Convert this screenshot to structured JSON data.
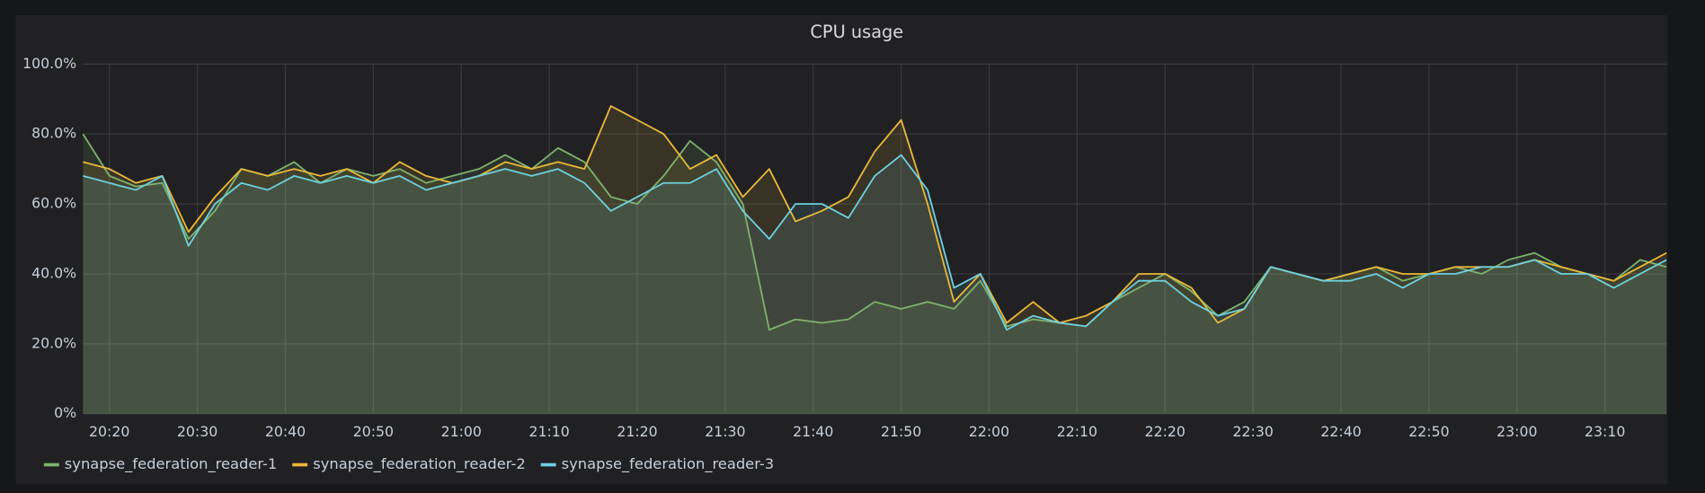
{
  "chart_data": {
    "type": "line",
    "title": "CPU usage",
    "x": [
      "20:17",
      "20:20",
      "20:23",
      "20:26",
      "20:29",
      "20:32",
      "20:35",
      "20:38",
      "20:41",
      "20:44",
      "20:47",
      "20:50",
      "20:53",
      "20:56",
      "20:59",
      "21:02",
      "21:05",
      "21:08",
      "21:11",
      "21:14",
      "21:17",
      "21:20",
      "21:23",
      "21:26",
      "21:29",
      "21:32",
      "21:35",
      "21:38",
      "21:41",
      "21:44",
      "21:47",
      "21:50",
      "21:53",
      "21:56",
      "21:59",
      "22:02",
      "22:05",
      "22:08",
      "22:11",
      "22:14",
      "22:17",
      "22:20",
      "22:23",
      "22:26",
      "22:29",
      "22:32",
      "22:35",
      "22:38",
      "22:41",
      "22:44",
      "22:47",
      "22:50",
      "22:53",
      "22:56",
      "22:59",
      "23:02",
      "23:05",
      "23:08",
      "23:11",
      "23:14",
      "23:17"
    ],
    "series": [
      {
        "name": "synapse_federation_reader-1",
        "color": "#7eb26d",
        "values": [
          80,
          68,
          65,
          66,
          50,
          58,
          70,
          68,
          72,
          66,
          70,
          68,
          70,
          66,
          68,
          70,
          74,
          70,
          76,
          72,
          62,
          60,
          68,
          78,
          72,
          60,
          24,
          27,
          26,
          27,
          32,
          30,
          32,
          30,
          38,
          25,
          27,
          26,
          25,
          32,
          36,
          40,
          35,
          28,
          32,
          42,
          40,
          38,
          40,
          42,
          38,
          40,
          42,
          40,
          44,
          46,
          42,
          40,
          38,
          44,
          42
        ]
      },
      {
        "name": "synapse_federation_reader-2",
        "color": "#eab839",
        "values": [
          72,
          70,
          66,
          68,
          52,
          62,
          70,
          68,
          70,
          68,
          70,
          66,
          72,
          68,
          66,
          68,
          72,
          70,
          72,
          70,
          88,
          84,
          80,
          70,
          74,
          62,
          70,
          55,
          58,
          62,
          75,
          84,
          60,
          32,
          40,
          26,
          32,
          26,
          28,
          32,
          40,
          40,
          36,
          26,
          30,
          42,
          40,
          38,
          40,
          42,
          40,
          40,
          42,
          42,
          42,
          44,
          42,
          40,
          38,
          42,
          46
        ]
      },
      {
        "name": "synapse_federation_reader-3",
        "color": "#6ed0e0",
        "values": [
          68,
          66,
          64,
          68,
          48,
          60,
          66,
          64,
          68,
          66,
          68,
          66,
          68,
          64,
          66,
          68,
          70,
          68,
          70,
          66,
          58,
          62,
          66,
          66,
          70,
          58,
          50,
          60,
          60,
          56,
          68,
          74,
          64,
          36,
          40,
          24,
          28,
          26,
          25,
          32,
          38,
          38,
          32,
          28,
          30,
          42,
          40,
          38,
          38,
          40,
          36,
          40,
          40,
          42,
          42,
          44,
          40,
          40,
          36,
          40,
          44
        ]
      }
    ],
    "xlim": [
      "20:17",
      "23:17"
    ],
    "xticks": [
      "20:20",
      "20:30",
      "20:40",
      "20:50",
      "21:00",
      "21:10",
      "21:20",
      "21:30",
      "21:40",
      "21:50",
      "22:00",
      "22:10",
      "22:20",
      "22:30",
      "22:40",
      "22:50",
      "23:00",
      "23:10"
    ],
    "ylim": [
      0,
      100
    ],
    "yticks": [
      {
        "value": 0,
        "label": "0%"
      },
      {
        "value": 20,
        "label": "20.0%"
      },
      {
        "value": 40,
        "label": "40.0%"
      },
      {
        "value": 60,
        "label": "60.0%"
      },
      {
        "value": 80,
        "label": "80.0%"
      },
      {
        "value": 100,
        "label": "100.0%"
      }
    ],
    "grid": true,
    "fill": true,
    "legend": "bottom-left"
  }
}
